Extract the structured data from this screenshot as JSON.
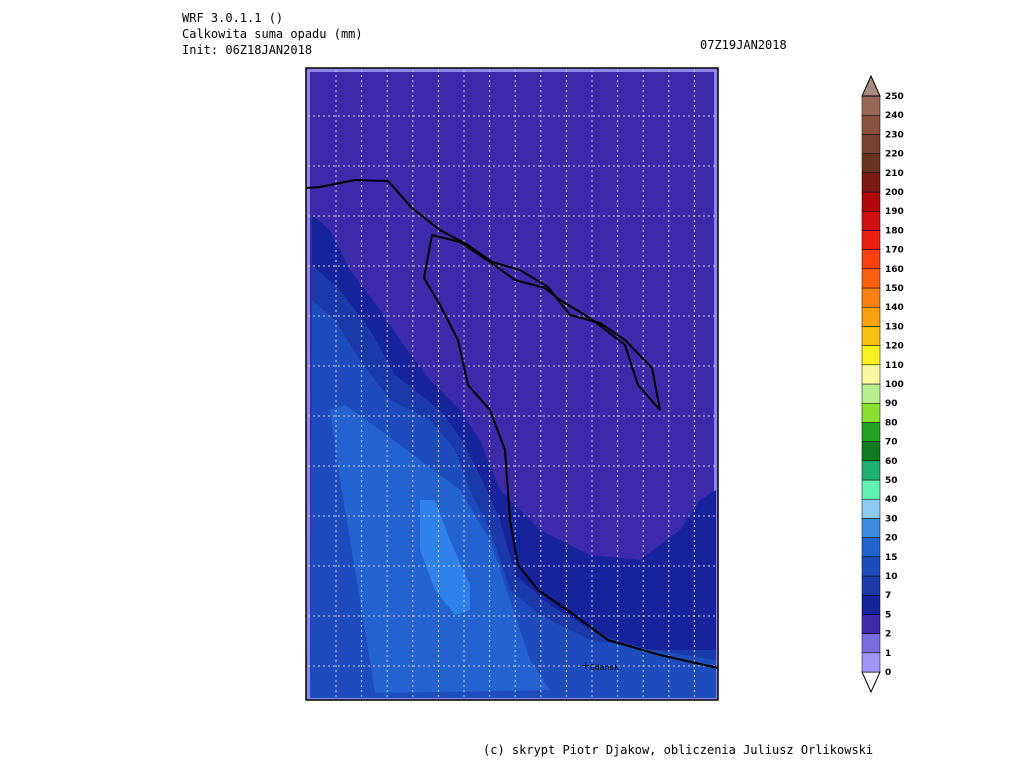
{
  "header": {
    "model": "WRF 3.0.1.1 ()",
    "field": "Calkowita suma opadu (mm)",
    "init": "Init: 06Z18JAN2018",
    "valid": "07Z19JAN2018"
  },
  "map": {
    "place": "Gdansk"
  },
  "colorbar": {
    "labels": [
      0,
      1,
      2,
      5,
      7,
      10,
      15,
      20,
      30,
      40,
      50,
      60,
      70,
      80,
      90,
      100,
      110,
      120,
      130,
      140,
      150,
      160,
      170,
      180,
      190,
      200,
      210,
      220,
      230,
      240,
      250
    ],
    "segment_colors": [
      "#9f96f5",
      "#7a6de0",
      "#3c2aaa",
      "#16239a",
      "#1b3aaa",
      "#1d4dbd",
      "#2263d0",
      "#3d8be0",
      "#8ec8f5",
      "#60f0b0",
      "#20b070",
      "#107a20",
      "#22a022",
      "#88e030",
      "#b8f090",
      "#f8f8a0",
      "#f8f020",
      "#f8c010",
      "#f8a010",
      "#f88010",
      "#f86010",
      "#f84010",
      "#e82010",
      "#d01010",
      "#b00808",
      "#7a1a10",
      "#6a3020",
      "#7a4030",
      "#8a5040",
      "#9a6858"
    ],
    "over_color": "#a88a80"
  },
  "footer": "(c) skrypt Piotr Djakow, obliczenia Juliusz Orlikowski"
}
